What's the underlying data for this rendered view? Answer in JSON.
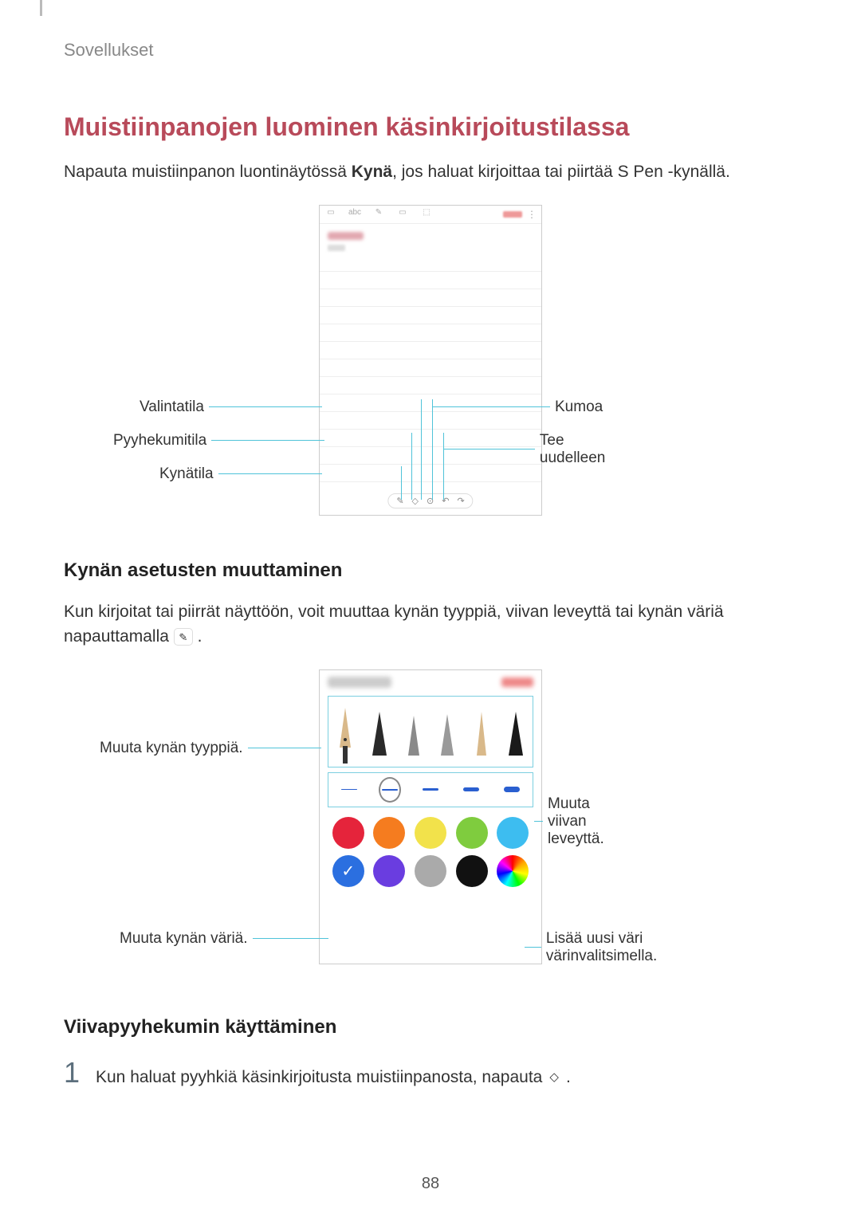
{
  "header": {
    "section": "Sovellukset"
  },
  "title": "Muistiinpanojen luominen käsinkirjoitustilassa",
  "intro": {
    "part1": "Napauta muistiinpanon luontinäytössä ",
    "bold": "Kynä",
    "part2": ", jos haluat kirjoittaa tai piirtää S Pen -kynällä."
  },
  "diagram1": {
    "labels_left": [
      "Valintatila",
      "Pyyhekumitila",
      "Kynätila"
    ],
    "labels_right": [
      "Kumoa",
      "Tee uudelleen"
    ],
    "toolbar_icons": [
      "▭",
      "abc",
      "✎",
      "▭",
      "⬚"
    ],
    "bottom_icons": [
      "✎",
      "◇",
      "⊙",
      "↶",
      "↷"
    ]
  },
  "subtitle1": "Kynän asetusten muuttaminen",
  "para1": "Kun kirjoitat tai piirrät näyttöön, voit muuttaa kynän tyyppiä, viivan leveyttä tai kynän väriä napauttamalla ",
  "diagram2": {
    "labels_left": [
      "Muuta kynän tyyppiä.",
      "Muuta kynän väriä."
    ],
    "labels_right": [
      "Muuta viivan leveyttä.",
      "Lisää uusi väri värinvalitsimella."
    ],
    "pen_colors": [
      "#d9b98a",
      "#333333",
      "#888888",
      "#999999",
      "#d9b98a",
      "#222222"
    ],
    "thickness_widths": [
      1,
      2,
      3,
      5,
      7
    ],
    "colors_row1": [
      "#e5243b",
      "#f57c1f",
      "#f2e24b",
      "#7fcc3e",
      "#3dbdf0"
    ],
    "colors_row2": [
      "#2b6fe0",
      "#6a3de0",
      "#aaaaaa",
      "#111111",
      "rainbow"
    ]
  },
  "subtitle2": "Viivapyyhekumin käyttäminen",
  "step1": {
    "num": "1",
    "text": "Kun haluat pyyhkiä käsinkirjoitusta muistiinpanosta, napauta "
  },
  "page_number": "88"
}
